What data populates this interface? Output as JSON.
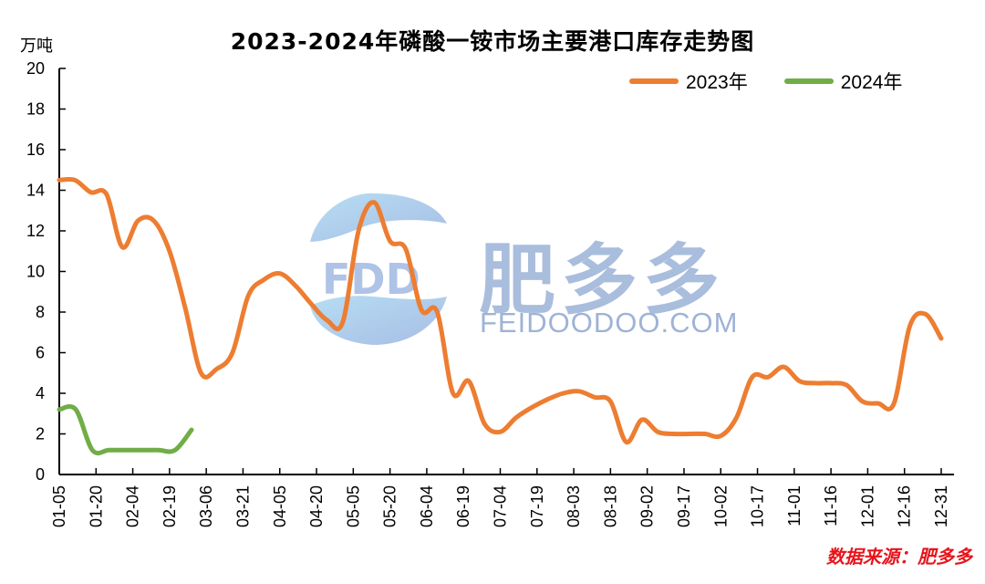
{
  "chart_data": {
    "type": "line",
    "title": "2023-2024年磷酸一铵市场主要港口库存走势图",
    "ylabel": "万吨",
    "xlabel": "",
    "ylim": [
      0,
      20
    ],
    "yticks": [
      0,
      2,
      4,
      6,
      8,
      10,
      12,
      14,
      16,
      18,
      20
    ],
    "grid": false,
    "legend_position": "top-right",
    "xtick_labels": [
      "01-05",
      "01-20",
      "02-04",
      "02-19",
      "03-06",
      "03-21",
      "04-05",
      "04-20",
      "05-05",
      "05-20",
      "06-04",
      "06-19",
      "07-04",
      "07-19",
      "08-03",
      "08-18",
      "09-02",
      "09-17",
      "10-02",
      "10-17",
      "11-01",
      "11-16",
      "12-01",
      "12-16",
      "12-31"
    ],
    "series": [
      {
        "name": "2023年",
        "color": "#ed7d31",
        "points": [
          [
            "01-05",
            14.5
          ],
          [
            "01-10",
            14.5
          ],
          [
            "01-15",
            13.9
          ],
          [
            "01-20",
            13.8
          ],
          [
            "01-25",
            11.2
          ],
          [
            "01-30",
            12.5
          ],
          [
            "02-04",
            12.5
          ],
          [
            "02-09",
            11.0
          ],
          [
            "02-14",
            8.2
          ],
          [
            "02-19",
            5.0
          ],
          [
            "02-24",
            5.2
          ],
          [
            "03-01",
            6.0
          ],
          [
            "03-06",
            8.8
          ],
          [
            "03-11",
            9.6
          ],
          [
            "03-16",
            9.9
          ],
          [
            "03-21",
            9.3
          ],
          [
            "03-26",
            8.4
          ],
          [
            "03-31",
            7.6
          ],
          [
            "04-05",
            7.5
          ],
          [
            "04-10",
            12.0
          ],
          [
            "04-15",
            13.4
          ],
          [
            "04-20",
            11.5
          ],
          [
            "04-25",
            11.1
          ],
          [
            "04-30",
            8.1
          ],
          [
            "05-05",
            8.0
          ],
          [
            "05-10",
            4.0
          ],
          [
            "05-15",
            4.6
          ],
          [
            "05-20",
            2.5
          ],
          [
            "05-25",
            2.1
          ],
          [
            "05-30",
            2.8
          ],
          [
            "06-04",
            3.3
          ],
          [
            "06-09",
            3.7
          ],
          [
            "06-14",
            4.0
          ],
          [
            "06-19",
            4.1
          ],
          [
            "06-24",
            3.8
          ],
          [
            "06-29",
            3.6
          ],
          [
            "07-04",
            1.6
          ],
          [
            "07-09",
            2.7
          ],
          [
            "07-14",
            2.1
          ],
          [
            "07-19",
            2.0
          ],
          [
            "07-24",
            2.0
          ],
          [
            "07-29",
            2.0
          ],
          [
            "08-03",
            1.9
          ],
          [
            "08-08",
            2.8
          ],
          [
            "08-13",
            4.8
          ],
          [
            "08-18",
            4.8
          ],
          [
            "08-23",
            5.3
          ],
          [
            "08-28",
            4.6
          ],
          [
            "09-02",
            4.5
          ],
          [
            "09-07",
            4.5
          ],
          [
            "09-12",
            4.4
          ],
          [
            "09-17",
            3.6
          ],
          [
            "09-22",
            3.5
          ],
          [
            "09-27",
            3.5
          ],
          [
            "10-02",
            7.3
          ],
          [
            "10-07",
            7.9
          ],
          [
            "10-12",
            6.7
          ]
        ]
      },
      {
        "name": "2024年",
        "color": "#70ad47",
        "points": [
          [
            "01-05",
            3.2
          ],
          [
            "01-10",
            3.2
          ],
          [
            "01-15",
            1.2
          ],
          [
            "01-20",
            1.2
          ],
          [
            "01-25",
            1.2
          ],
          [
            "01-30",
            1.2
          ],
          [
            "02-04",
            1.2
          ],
          [
            "02-09",
            1.2
          ],
          [
            "02-14",
            2.2
          ]
        ]
      }
    ]
  },
  "header": {
    "title": "2023-2024年磷酸一铵市场主要港口库存走势图",
    "unit": "万吨"
  },
  "legend": {
    "items": [
      {
        "label": "2023年",
        "color": "#ed7d31"
      },
      {
        "label": "2024年",
        "color": "#70ad47"
      }
    ]
  },
  "watermark": {
    "logo_text": "FDD",
    "brand_cn": "肥多多",
    "brand_url": "FEIDOODOO.COM"
  },
  "footer": {
    "source": "数据来源：肥多多"
  }
}
